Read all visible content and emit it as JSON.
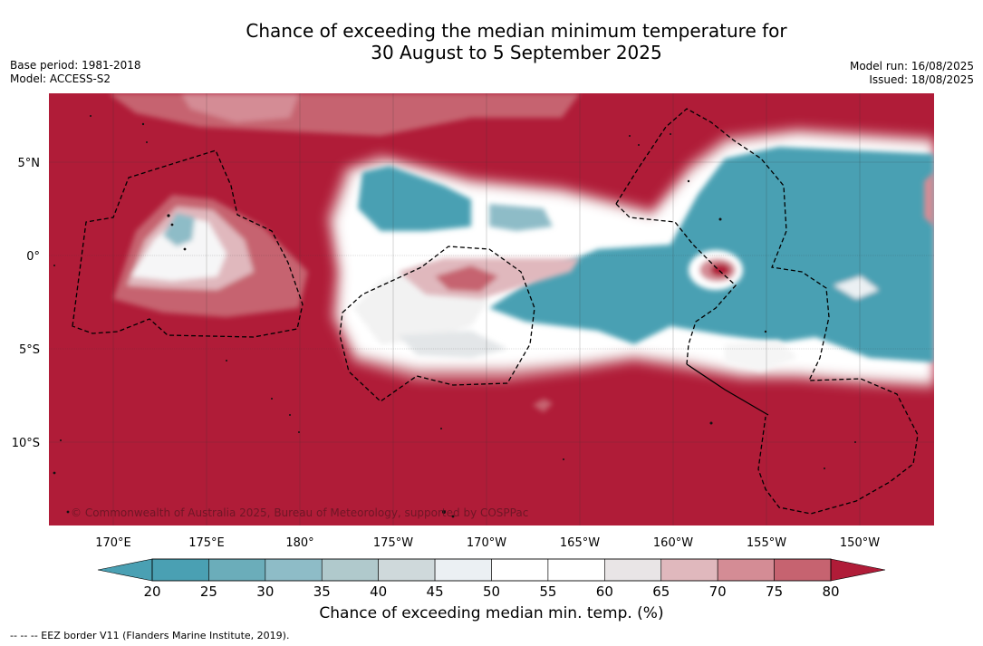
{
  "title_line1": "Chance of exceeding the median minimum temperature for",
  "title_line2": "30 August to 5 September 2025",
  "meta_left": {
    "base_period": "Base period: 1981-2018",
    "model": "Model: ACCESS-S2"
  },
  "meta_right": {
    "model_run": "Model run: 16/08/2025",
    "issued": "Issued: 18/08/2025"
  },
  "copyright": "© Commonwealth of Australia 2025, Bureau of Meteorology, supported by COSPPac",
  "lat_labels": [
    "5°N",
    "0°",
    "5°S",
    "10°S"
  ],
  "lon_labels": [
    "170°E",
    "175°E",
    "180°",
    "175°W",
    "170°W",
    "165°W",
    "160°W",
    "155°W",
    "150°W"
  ],
  "colorbar": {
    "ticks": [
      "20",
      "25",
      "30",
      "35",
      "40",
      "45",
      "50",
      "55",
      "60",
      "65",
      "70",
      "75",
      "80"
    ],
    "colors": [
      "#4aa0b3",
      "#6badba",
      "#8ebcc7",
      "#b0c9cc",
      "#cfd9db",
      "#ebf0f3",
      "#ffffff",
      "#ffffff",
      "#e9e5e6",
      "#e0b8bd",
      "#d48c95",
      "#c66370",
      "#bb3d4e"
    ],
    "under_color": "#4aa0b3",
    "over_color": "#b01c38",
    "title": "Chance of exceeding median min. temp. (%)"
  },
  "footnote": "--  --  -- EEZ border V11 (Flanders Marine Institute, 2019)."
}
